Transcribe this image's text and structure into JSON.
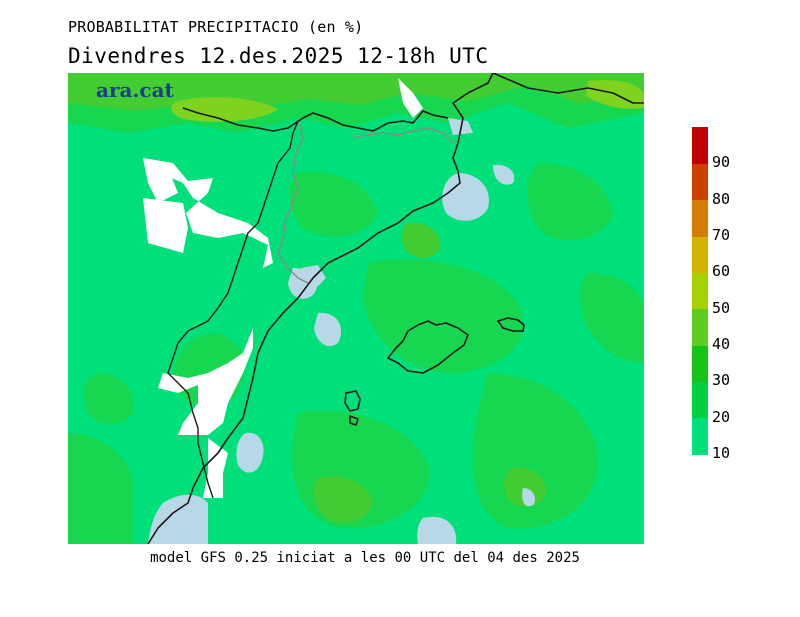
{
  "header": {
    "title": "PROBABILITAT PRECIPITACIO (en %)",
    "subtitle": "Divendres  12.des.2025 12-18h UTC"
  },
  "brand": {
    "logo_text": "ara.cat"
  },
  "footer": {
    "model_note": "model GFS 0.25 iniciat a les 00 UTC del 04 des 2025"
  },
  "legend": {
    "colors": [
      "#00e07a",
      "#00d040",
      "#17c317",
      "#5ccf1e",
      "#a5d200",
      "#d2b400",
      "#d27d00",
      "#cc4000",
      "#c00000"
    ],
    "labels": [
      "10",
      "20",
      "30",
      "40",
      "50",
      "60",
      "70",
      "80",
      "90"
    ]
  },
  "map_colors": {
    "below_threshold_land": "#ffffff",
    "below_threshold_sea": "#b8d8e8",
    "band_10_20": "#00e07a",
    "band_20_30": "#17d750",
    "band_30_40": "#44cc33",
    "band_40_50": "#7fd21e",
    "coastline": "#1a1a1a",
    "border": "#8a8a8a"
  }
}
